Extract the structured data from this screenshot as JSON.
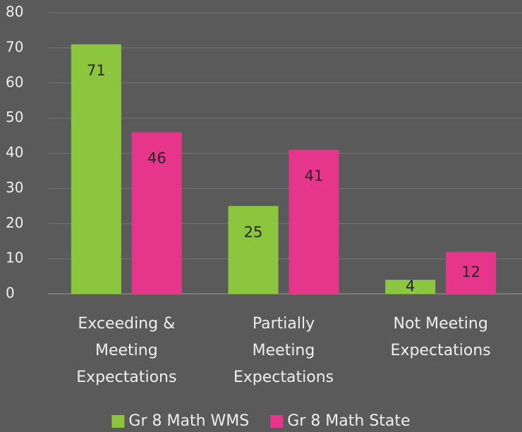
{
  "chart_data": {
    "type": "bar",
    "categories": [
      "Exceeding & Meeting Expectations",
      "Partially Meeting Expectations",
      "Not Meeting Expectations"
    ],
    "series": [
      {
        "name": "Gr 8 Math WMS",
        "color": "#8cc63e",
        "values": [
          71,
          25,
          4
        ]
      },
      {
        "name": "Gr 8 Math State",
        "color": "#e5368c",
        "values": [
          46,
          41,
          12
        ]
      }
    ],
    "ylim": [
      0,
      80
    ],
    "yticks": [
      0,
      10,
      20,
      30,
      40,
      50,
      60,
      70,
      80
    ],
    "grid": true,
    "legend": "bottom"
  }
}
